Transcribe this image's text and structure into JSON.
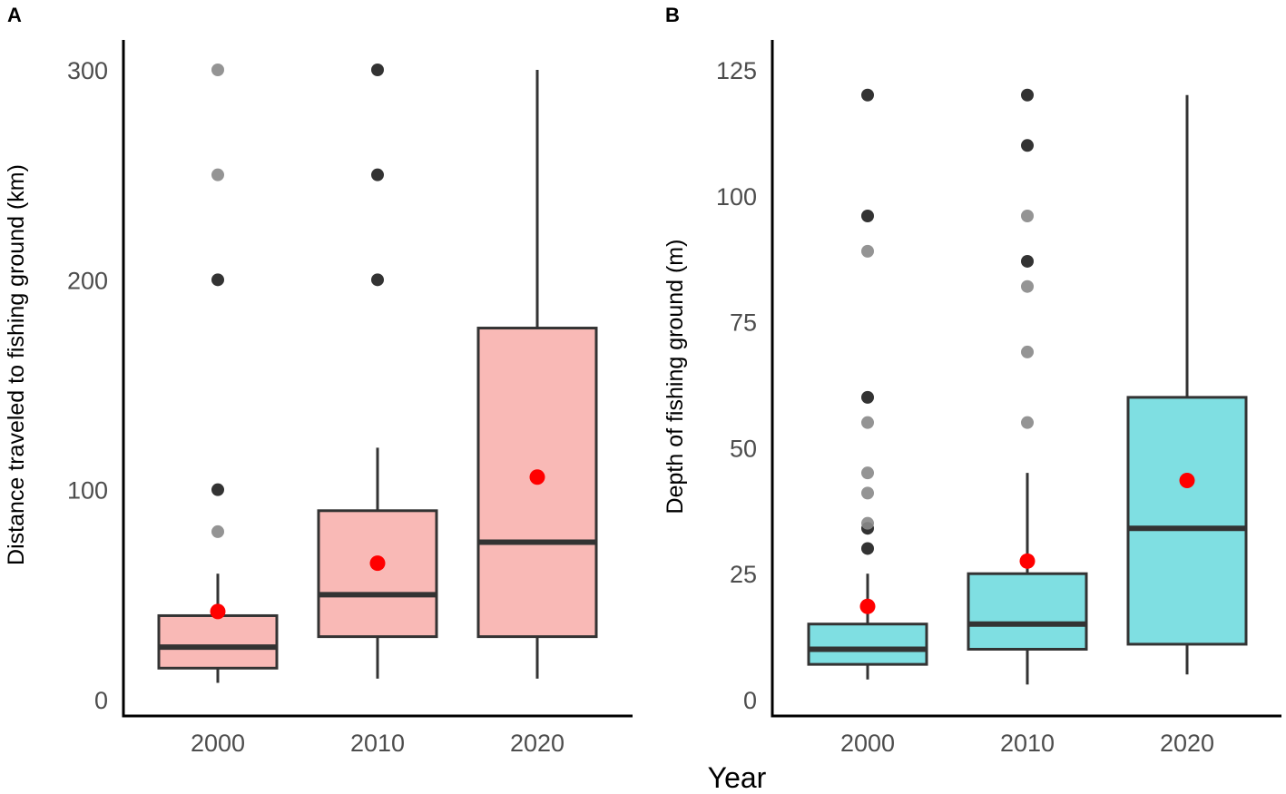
{
  "chart_data": [
    {
      "type": "box",
      "panel_label": "A",
      "ylabel": "Distance traveled to fishing ground (km)",
      "xlabel": "Year",
      "categories": [
        "2000",
        "2010",
        "2020"
      ],
      "ylim": [
        0,
        300
      ],
      "yticks": [
        0,
        100,
        200,
        300
      ],
      "fill_color": "#f9b9b6",
      "mean_color": "#ff0000",
      "boxes": [
        {
          "category": "2000",
          "min": 8,
          "q1": 15,
          "median": 25,
          "q3": 40,
          "max": 60,
          "mean": 42,
          "outliers": [
            {
              "value": 80,
              "shade": "light"
            },
            {
              "value": 100,
              "shade": "dark"
            },
            {
              "value": 200,
              "shade": "dark"
            },
            {
              "value": 250,
              "shade": "light"
            },
            {
              "value": 300,
              "shade": "light"
            }
          ]
        },
        {
          "category": "2010",
          "min": 10,
          "q1": 30,
          "median": 50,
          "q3": 90,
          "max": 120,
          "mean": 65,
          "outliers": [
            {
              "value": 200,
              "shade": "dark"
            },
            {
              "value": 250,
              "shade": "dark"
            },
            {
              "value": 300,
              "shade": "dark"
            }
          ]
        },
        {
          "category": "2020",
          "min": 10,
          "q1": 30,
          "median": 75,
          "q3": 177,
          "max": 300,
          "mean": 106,
          "outliers": []
        }
      ]
    },
    {
      "type": "box",
      "panel_label": "B",
      "ylabel": "Depth of fishing ground (m)",
      "xlabel": "Year",
      "categories": [
        "2000",
        "2010",
        "2020"
      ],
      "ylim": [
        0,
        125
      ],
      "yticks": [
        0,
        25,
        50,
        75,
        100,
        125
      ],
      "fill_color": "#7fdfe2",
      "mean_color": "#ff0000",
      "boxes": [
        {
          "category": "2000",
          "min": 4,
          "q1": 7,
          "median": 10,
          "q3": 15,
          "max": 25,
          "mean": 18.5,
          "outliers": [
            {
              "value": 30,
              "shade": "dark"
            },
            {
              "value": 34,
              "shade": "dark"
            },
            {
              "value": 35,
              "shade": "light"
            },
            {
              "value": 41,
              "shade": "light"
            },
            {
              "value": 45,
              "shade": "light"
            },
            {
              "value": 55,
              "shade": "light"
            },
            {
              "value": 60,
              "shade": "dark"
            },
            {
              "value": 89,
              "shade": "light"
            },
            {
              "value": 96,
              "shade": "dark"
            },
            {
              "value": 120,
              "shade": "dark"
            }
          ]
        },
        {
          "category": "2010",
          "min": 3,
          "q1": 10,
          "median": 15,
          "q3": 25,
          "max": 45,
          "mean": 27.5,
          "outliers": [
            {
              "value": 55,
              "shade": "light"
            },
            {
              "value": 69,
              "shade": "light"
            },
            {
              "value": 82,
              "shade": "light"
            },
            {
              "value": 87,
              "shade": "dark"
            },
            {
              "value": 96,
              "shade": "light"
            },
            {
              "value": 110,
              "shade": "dark"
            },
            {
              "value": 120,
              "shade": "dark"
            }
          ]
        },
        {
          "category": "2020",
          "min": 5,
          "q1": 11,
          "median": 34,
          "q3": 60,
          "max": 120,
          "mean": 43.5,
          "outliers": []
        }
      ]
    }
  ],
  "figure": {
    "x_title": "Year"
  }
}
